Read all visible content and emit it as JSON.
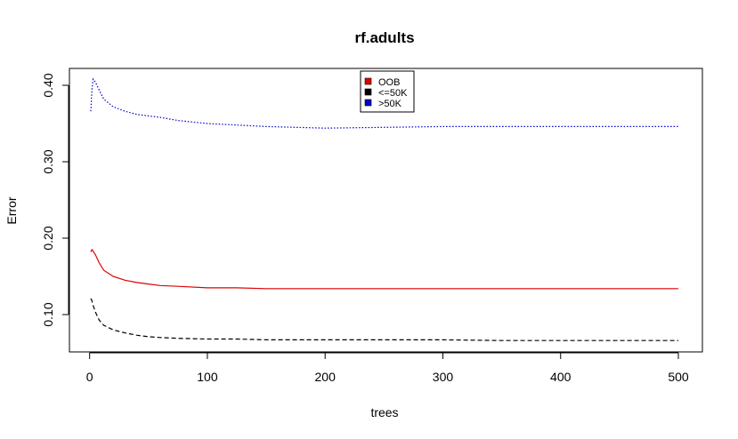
{
  "chart_data": {
    "type": "line",
    "title": "rf.adults",
    "xlabel": "trees",
    "ylabel": "Error",
    "xlim": [
      1,
      500
    ],
    "ylim": [
      0.05,
      0.42
    ],
    "x_ticks": [
      0,
      100,
      200,
      300,
      400,
      500
    ],
    "x_tick_labels": [
      "0",
      "100",
      "200",
      "300",
      "400",
      "500"
    ],
    "y_ticks": [
      0.1,
      0.2,
      0.3,
      0.4
    ],
    "y_tick_labels": [
      "0.10",
      "0.20",
      "0.30",
      "0.40"
    ],
    "grid": false,
    "legend_position": "top-center",
    "series": [
      {
        "name": "OOB",
        "color": "#DF0000",
        "line_style": "solid",
        "x": [
          1,
          2,
          3,
          5,
          8,
          12,
          20,
          30,
          40,
          50,
          60,
          75,
          100,
          125,
          150,
          200,
          250,
          300,
          350,
          400,
          450,
          500
        ],
        "values": [
          0.182,
          0.185,
          0.183,
          0.178,
          0.168,
          0.158,
          0.15,
          0.145,
          0.142,
          0.14,
          0.138,
          0.137,
          0.135,
          0.135,
          0.134,
          0.134,
          0.134,
          0.134,
          0.134,
          0.134,
          0.134,
          0.134
        ]
      },
      {
        "name": "<=50K",
        "color": "#000000",
        "line_style": "dashed",
        "x": [
          1,
          2,
          3,
          5,
          8,
          12,
          20,
          30,
          40,
          50,
          60,
          75,
          100,
          125,
          150,
          200,
          250,
          300,
          350,
          400,
          450,
          500
        ],
        "values": [
          0.121,
          0.118,
          0.112,
          0.103,
          0.093,
          0.086,
          0.08,
          0.076,
          0.073,
          0.071,
          0.07,
          0.069,
          0.068,
          0.068,
          0.067,
          0.067,
          0.067,
          0.067,
          0.066,
          0.066,
          0.066,
          0.066
        ]
      },
      {
        "name": ">50K",
        "color": "#0000CD",
        "line_style": "dotted",
        "x": [
          1,
          2,
          3,
          5,
          8,
          12,
          20,
          30,
          40,
          50,
          60,
          75,
          100,
          125,
          150,
          200,
          250,
          300,
          350,
          400,
          450,
          500
        ],
        "values": [
          0.366,
          0.395,
          0.408,
          0.404,
          0.394,
          0.382,
          0.372,
          0.366,
          0.362,
          0.36,
          0.358,
          0.354,
          0.35,
          0.348,
          0.346,
          0.344,
          0.345,
          0.346,
          0.346,
          0.346,
          0.346,
          0.346
        ]
      }
    ]
  }
}
